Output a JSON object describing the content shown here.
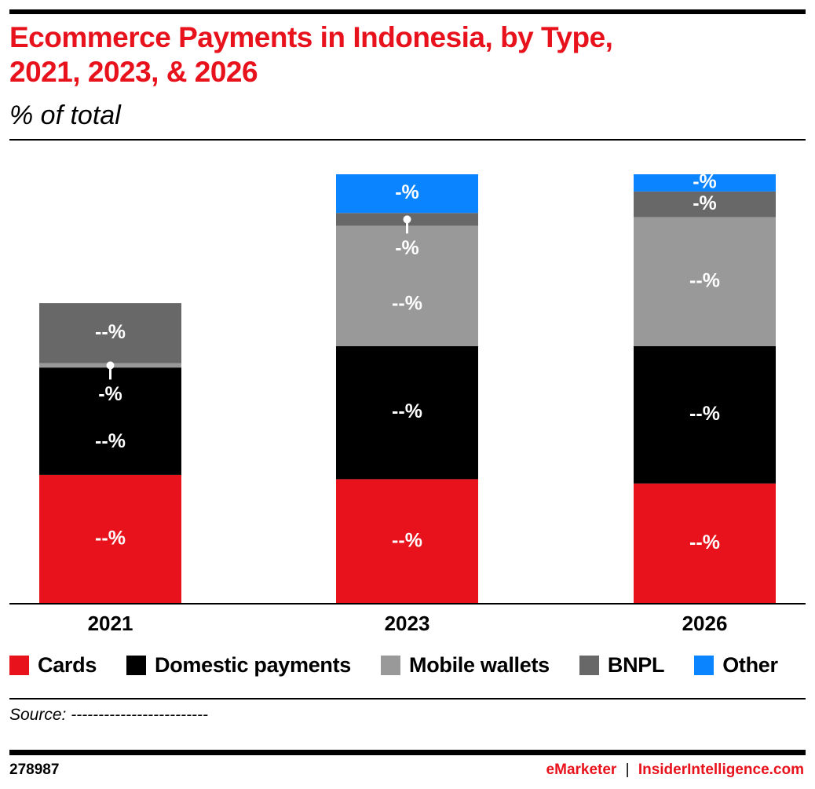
{
  "title": "Ecommerce Payments in Indonesia, by Type, 2021, 2023, & 2026",
  "title_line1": "Ecommerce Payments in Indonesia, by Type,",
  "title_line2": "2021, 2023, & 2026",
  "subtitle": "% of total",
  "source": "Source: -------------------------",
  "chart_id": "278987",
  "brand_left": "eMarketer",
  "brand_sep": "|",
  "brand_right": "InsiderIntelligence.com",
  "colors": {
    "Cards": "#e8121c",
    "Domestic payments": "#000000",
    "Mobile wallets": "#999999",
    "BNPL": "#686868",
    "Other": "#0a84ff"
  },
  "chart_data": {
    "type": "bar",
    "stacked": true,
    "title": "Ecommerce Payments in Indonesia, by Type, 2021, 2023, & 2026",
    "ylabel": "% of total",
    "ylim": [
      0,
      100
    ],
    "grid": false,
    "legend_position": "bottom",
    "categories": [
      "2021",
      "2023",
      "2026"
    ],
    "series": [
      {
        "name": "Cards",
        "values": [
          30,
          29,
          28
        ],
        "labels": [
          "--%",
          "--%",
          "--%"
        ]
      },
      {
        "name": "Domestic payments",
        "values": [
          25,
          31,
          32
        ],
        "labels": [
          "--%",
          "--%",
          "--%"
        ]
      },
      {
        "name": "Mobile wallets",
        "values": [
          1,
          28,
          30
        ],
        "labels": [
          "-%",
          "--%",
          "--%"
        ],
        "callout": [
          true,
          false,
          false
        ]
      },
      {
        "name": "BNPL",
        "values": [
          14,
          3,
          6
        ],
        "labels": [
          "--%",
          "-%",
          "-%"
        ],
        "callout": [
          false,
          true,
          false
        ]
      },
      {
        "name": "Other",
        "values": [
          0,
          9,
          4
        ],
        "labels": [
          "",
          "-%",
          "-%"
        ]
      }
    ]
  }
}
